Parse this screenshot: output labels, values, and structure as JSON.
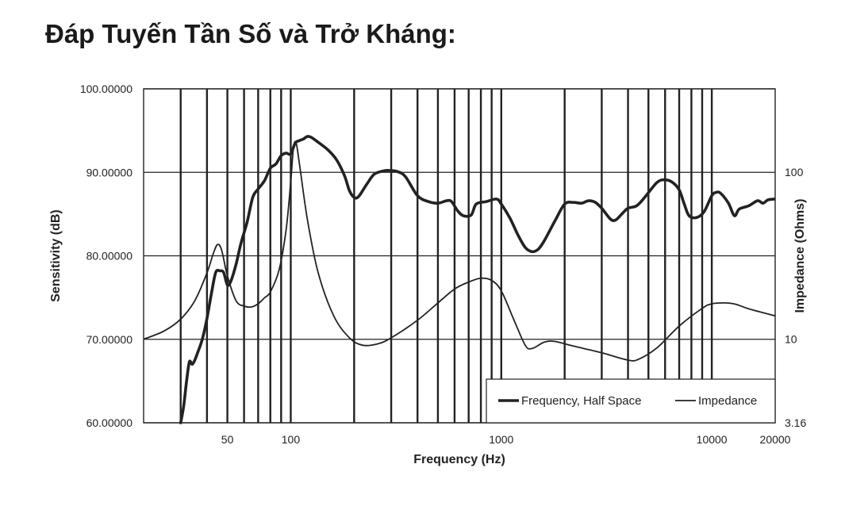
{
  "page": {
    "title": "Đáp Tuyến Tần Số và Trở Kháng:"
  },
  "chart_data": {
    "type": "line",
    "xlabel": "Frequency (Hz)",
    "ylabel": "Sensitivity (dB)",
    "y2label": "Impedance (Ohms)",
    "x_scale": "log",
    "xlim": [
      20,
      20000
    ],
    "ylim": [
      60,
      100
    ],
    "y2lim": [
      3.16,
      316
    ],
    "y2_scale": "log",
    "x_ticks": [
      50,
      100,
      1000,
      10000,
      20000
    ],
    "x_tick_labels": [
      "50",
      "100",
      "1000",
      "10000",
      "20000"
    ],
    "y_ticks": [
      60,
      70,
      80,
      90,
      100
    ],
    "y_tick_labels": [
      "60.00000",
      "70.00000",
      "80.00000",
      "90.00000",
      "100.00000"
    ],
    "y2_ticks": [
      3.16,
      10,
      100
    ],
    "y2_tick_labels": [
      "3.16",
      "10",
      "100"
    ],
    "x_gridlines": [
      30,
      40,
      50,
      60,
      70,
      80,
      90,
      100,
      200,
      300,
      400,
      500,
      600,
      700,
      800,
      900,
      1000,
      2000,
      3000,
      4000,
      5000,
      6000,
      7000,
      8000,
      9000,
      10000
    ],
    "grid": true,
    "legend_position": "bottom-right",
    "legend": [
      "Frequency, Half Space",
      "Impedance"
    ],
    "series": [
      {
        "name": "Frequency, Half Space",
        "axis": "left",
        "color": "#222222",
        "line_width": 3.6,
        "points": [
          [
            30,
            60
          ],
          [
            31,
            62
          ],
          [
            32,
            65
          ],
          [
            33,
            67.3
          ],
          [
            34,
            67
          ],
          [
            35,
            67.5
          ],
          [
            36,
            68.3
          ],
          [
            38,
            70
          ],
          [
            40,
            72.5
          ],
          [
            42,
            75.5
          ],
          [
            44,
            78
          ],
          [
            46,
            78.2
          ],
          [
            48,
            78
          ],
          [
            50,
            76.5
          ],
          [
            52,
            77
          ],
          [
            55,
            79
          ],
          [
            58,
            81.5
          ],
          [
            62,
            84
          ],
          [
            66,
            87
          ],
          [
            70,
            88
          ],
          [
            75,
            89
          ],
          [
            80,
            90.5
          ],
          [
            85,
            91
          ],
          [
            90,
            92
          ],
          [
            95,
            92.3
          ],
          [
            100,
            92.2
          ],
          [
            105,
            93.5
          ],
          [
            110,
            93.8
          ],
          [
            115,
            94
          ],
          [
            120,
            94.3
          ],
          [
            125,
            94.2
          ],
          [
            135,
            93.6
          ],
          [
            150,
            92.7
          ],
          [
            165,
            91.5
          ],
          [
            180,
            89.6
          ],
          [
            190,
            87.8
          ],
          [
            200,
            87
          ],
          [
            210,
            87.1
          ],
          [
            230,
            88.6
          ],
          [
            250,
            89.8
          ],
          [
            280,
            90.2
          ],
          [
            300,
            90.2
          ],
          [
            320,
            90.1
          ],
          [
            350,
            89.5
          ],
          [
            400,
            87.2
          ],
          [
            450,
            86.5
          ],
          [
            500,
            86.3
          ],
          [
            550,
            86.6
          ],
          [
            580,
            86.5
          ],
          [
            620,
            85.4
          ],
          [
            660,
            84.8
          ],
          [
            720,
            84.9
          ],
          [
            760,
            86.2
          ],
          [
            850,
            86.5
          ],
          [
            950,
            86.8
          ],
          [
            1000,
            86.2
          ],
          [
            1100,
            84.5
          ],
          [
            1200,
            82.5
          ],
          [
            1300,
            81
          ],
          [
            1400,
            80.5
          ],
          [
            1500,
            80.8
          ],
          [
            1600,
            81.8
          ],
          [
            1800,
            84.2
          ],
          [
            2000,
            86.2
          ],
          [
            2200,
            86.4
          ],
          [
            2400,
            86.3
          ],
          [
            2600,
            86.6
          ],
          [
            2800,
            86.4
          ],
          [
            3000,
            85.7
          ],
          [
            3300,
            84.4
          ],
          [
            3500,
            84.3
          ],
          [
            3800,
            85.2
          ],
          [
            4000,
            85.7
          ],
          [
            4400,
            86
          ],
          [
            4800,
            87
          ],
          [
            5500,
            88.8
          ],
          [
            6000,
            89.1
          ],
          [
            6500,
            88.8
          ],
          [
            7000,
            87.9
          ],
          [
            7400,
            86.2
          ],
          [
            7800,
            84.8
          ],
          [
            8500,
            84.6
          ],
          [
            9200,
            85.3
          ],
          [
            10000,
            87.2
          ],
          [
            10500,
            87.6
          ],
          [
            11000,
            87.5
          ],
          [
            12000,
            86.3
          ],
          [
            12800,
            84.8
          ],
          [
            13500,
            85.6
          ],
          [
            15000,
            86
          ],
          [
            16500,
            86.6
          ],
          [
            17500,
            86.3
          ],
          [
            18500,
            86.7
          ],
          [
            20000,
            86.8
          ]
        ]
      },
      {
        "name": "Impedance",
        "axis": "right",
        "color": "#222222",
        "line_width": 1.8,
        "points": [
          [
            20,
            10
          ],
          [
            25,
            11.2
          ],
          [
            30,
            13.2
          ],
          [
            35,
            17
          ],
          [
            40,
            25
          ],
          [
            43,
            33
          ],
          [
            45,
            37
          ],
          [
            47,
            34
          ],
          [
            50,
            24
          ],
          [
            55,
            17
          ],
          [
            60,
            15.8
          ],
          [
            65,
            15.6
          ],
          [
            70,
            16.3
          ],
          [
            75,
            17.7
          ],
          [
            80,
            19.2
          ],
          [
            88,
            26
          ],
          [
            95,
            45
          ],
          [
            100,
            88
          ],
          [
            103,
            140
          ],
          [
            106,
            150
          ],
          [
            110,
            112
          ],
          [
            120,
            52
          ],
          [
            135,
            25
          ],
          [
            160,
            13.8
          ],
          [
            190,
            10.2
          ],
          [
            220,
            9.2
          ],
          [
            260,
            9.4
          ],
          [
            300,
            10.2
          ],
          [
            400,
            13
          ],
          [
            500,
            16.5
          ],
          [
            600,
            20
          ],
          [
            700,
            22
          ],
          [
            800,
            23.2
          ],
          [
            900,
            22.5
          ],
          [
            1000,
            19.5
          ],
          [
            1150,
            13
          ],
          [
            1300,
            9.2
          ],
          [
            1400,
            8.8
          ],
          [
            1600,
            9.6
          ],
          [
            1800,
            9.7
          ],
          [
            2200,
            9.1
          ],
          [
            3000,
            8.3
          ],
          [
            4000,
            7.5
          ],
          [
            4500,
            7.6
          ],
          [
            5500,
            8.9
          ],
          [
            7000,
            12
          ],
          [
            9000,
            15.3
          ],
          [
            10000,
            16.3
          ],
          [
            11500,
            16.5
          ],
          [
            13000,
            16.2
          ],
          [
            15000,
            15.2
          ],
          [
            20000,
            13.8
          ]
        ]
      }
    ]
  }
}
